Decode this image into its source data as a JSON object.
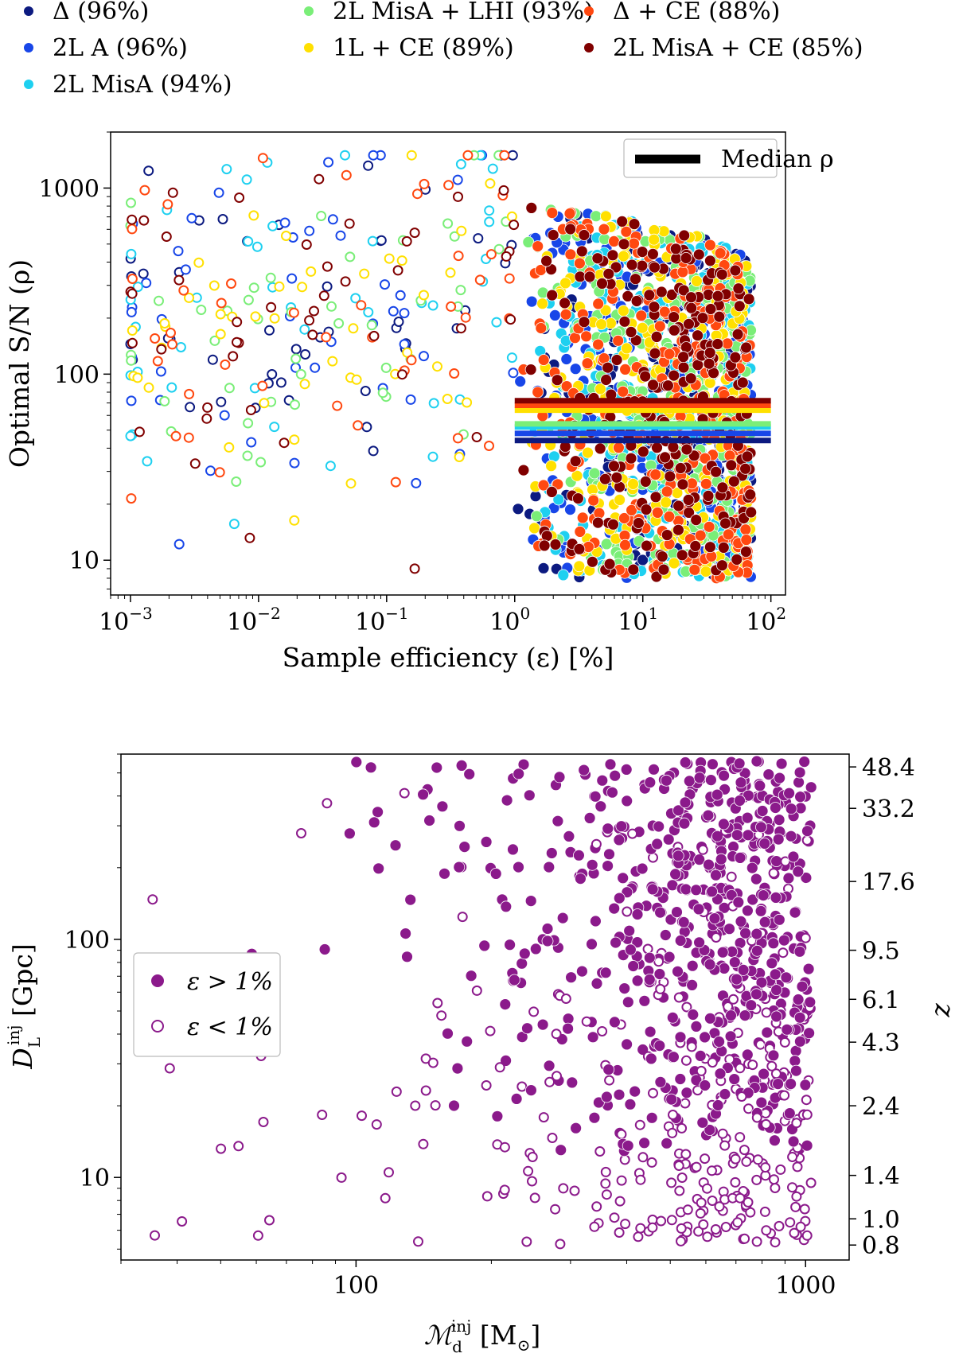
{
  "chart_data": [
    {
      "type": "scatter",
      "panel": "top",
      "xscale": "log",
      "yscale": "log",
      "xlabel": "Sample efficiency (ε) [%]",
      "ylabel": "Optimal S/N (ρ)",
      "xlim": [
        0.0007,
        130
      ],
      "ylim": [
        6.5,
        2000
      ],
      "xticks": [
        {
          "value": 0.001,
          "base": "10",
          "exp": "−3"
        },
        {
          "value": 0.01,
          "base": "10",
          "exp": "−2"
        },
        {
          "value": 0.1,
          "base": "10",
          "exp": "−1"
        },
        {
          "value": 1,
          "base": "10",
          "exp": "0"
        },
        {
          "value": 10,
          "base": "10",
          "exp": "1"
        },
        {
          "value": 100,
          "base": "10",
          "exp": "2"
        }
      ],
      "yticks": [
        {
          "value": 10,
          "label": "10"
        },
        {
          "value": 100,
          "label": "100"
        },
        {
          "value": 1000,
          "label": "1000"
        }
      ],
      "legend_inner": {
        "label": "Median ρ",
        "position": "upper-right"
      },
      "filled_marker_meaning": "ε > 1%",
      "hollow_marker_meaning": "ε < 1%",
      "series": [
        {
          "name": "Δ (96%)",
          "color": "#0c1a80",
          "median_rho": 44,
          "seed": 11
        },
        {
          "name": "2L A (96%)",
          "color": "#1846e8",
          "median_rho": 48,
          "seed": 23
        },
        {
          "name": "2L MisA (94%)",
          "color": "#1ed0f0",
          "median_rho": 52,
          "seed": 37
        },
        {
          "name": "2L MisA + LHI (93%)",
          "color": "#7aee78",
          "median_rho": 54,
          "seed": 41
        },
        {
          "name": "1L + CE (89%)",
          "color": "#ffe000",
          "median_rho": 64,
          "seed": 53
        },
        {
          "name": "Δ + CE (88%)",
          "color": "#ff4810",
          "median_rho": 68,
          "seed": 67
        },
        {
          "name": "2L MisA + CE (85%)",
          "color": "#800000",
          "median_rho": 72,
          "seed": 79
        }
      ]
    },
    {
      "type": "scatter",
      "panel": "bottom",
      "xscale": "log",
      "yscale": "log",
      "xlabel": "M_d^inj [M_⊙]",
      "xlabel_main": "ℳ",
      "xlabel_sub": "d",
      "xlabel_sup": "inj",
      "xlabel_unit": "[M",
      "xlabel_unit_sub": "⊙",
      "xlabel_unit_close": "]",
      "ylabel": "D_L^inj [Gpc]",
      "ylabel_main": "D",
      "ylabel_sub": "L",
      "ylabel_sup": "inj",
      "ylabel_unit": "[Gpc]",
      "y2label": "z",
      "xlim": [
        30,
        1250
      ],
      "ylim": [
        4.5,
        600
      ],
      "xticks": [
        {
          "value": 100,
          "label": "100"
        },
        {
          "value": 1000,
          "label": "1000"
        }
      ],
      "yticks": [
        {
          "value": 10,
          "label": "10"
        },
        {
          "value": 100,
          "label": "100"
        }
      ],
      "z_ticks": [
        {
          "z": "48.4",
          "dl": 530
        },
        {
          "z": "33.2",
          "dl": 355
        },
        {
          "z": "17.6",
          "dl": 175
        },
        {
          "z": "9.5",
          "dl": 90
        },
        {
          "z": "6.1",
          "dl": 56
        },
        {
          "z": "4.3",
          "dl": 37
        },
        {
          "z": "2.4",
          "dl": 20
        },
        {
          "z": "1.4",
          "dl": 10.2
        },
        {
          "z": "1.0",
          "dl": 6.7
        },
        {
          "z": "0.8",
          "dl": 5.2
        }
      ],
      "legend": [
        {
          "label": "ε > 1%",
          "marker": "filled"
        },
        {
          "label": "ε < 1%",
          "marker": "hollow"
        }
      ],
      "color": "#8b1a8b",
      "seed": 97
    }
  ]
}
